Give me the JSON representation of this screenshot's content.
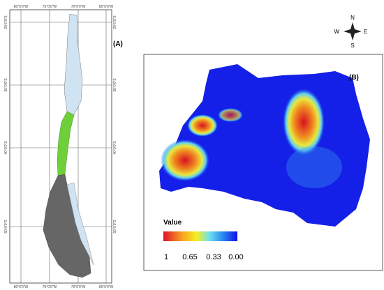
{
  "panel_a": {
    "label": "(A)",
    "top_labels": [
      "80°0'0\"W",
      "75°0'0\"W",
      "70°0'0\"W",
      "65°0'0\"W"
    ],
    "bottom_labels": [
      "80°0'0\"W",
      "75°0'0\"W",
      "70°0'0\"W",
      "65°0'0\"W"
    ],
    "left_labels": [
      "20°0'0\"S",
      "30°0'0\"S",
      "40°0'0\"S",
      "50°0'0\"S"
    ],
    "right_labels": [
      "20°0'0\"S",
      "30°0'0\"S",
      "40°0'0\"S",
      "50°0'0\"S"
    ]
  },
  "panel_b": {
    "label": "(B)",
    "legend": {
      "title": "Value",
      "labels": [
        "1",
        "0.65",
        "0.33",
        "0.00"
      ]
    }
  },
  "compass": {
    "n": "N",
    "e": "E",
    "s": "S",
    "w": "W"
  }
}
